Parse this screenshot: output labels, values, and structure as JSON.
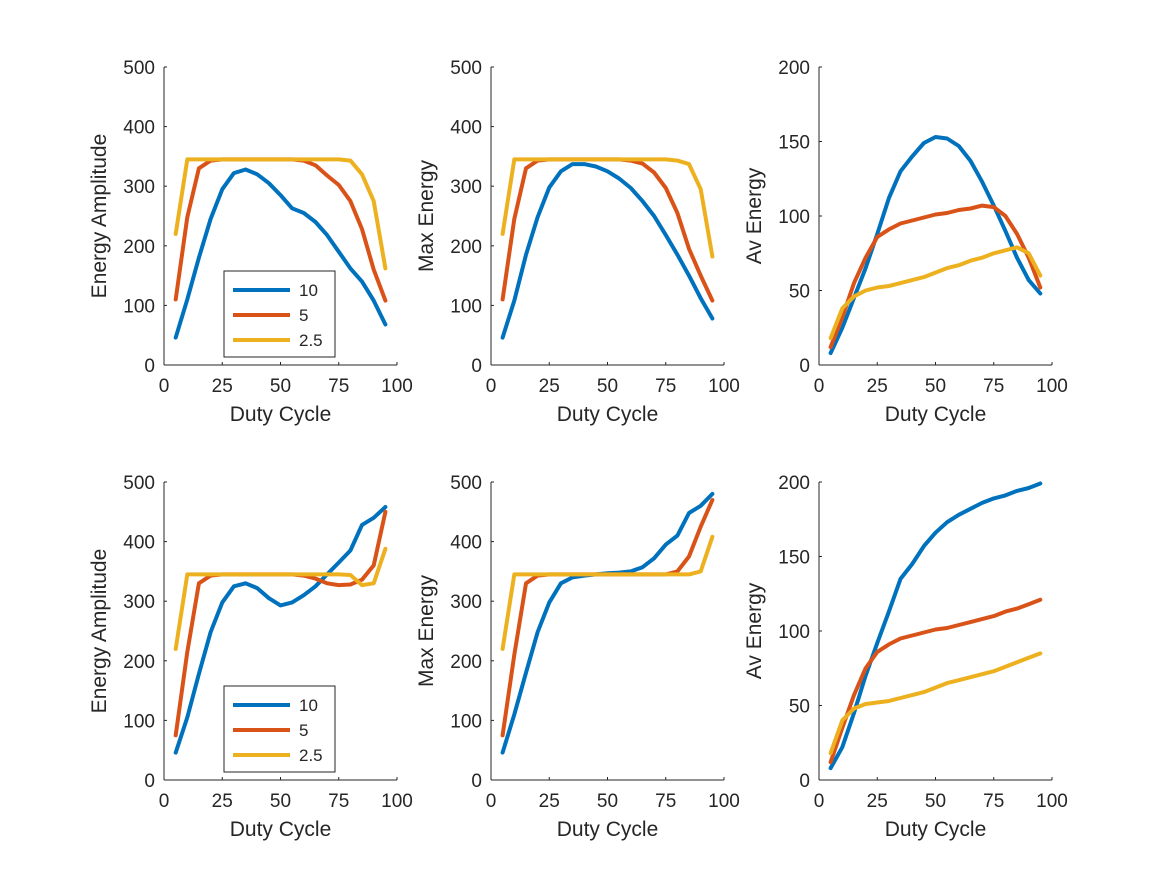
{
  "colors": {
    "10": "#0072BD",
    "5": "#D95319",
    "2.5": "#EDB120",
    "axis": "#262626"
  },
  "chart_data": [
    {
      "type": "line",
      "xlabel": "Duty Cycle",
      "ylabel": "Energy Amplitude",
      "xlim": [
        0,
        100
      ],
      "ylim": [
        0,
        500
      ],
      "xticks": [
        0,
        25,
        50,
        75,
        100
      ],
      "yticks": [
        0,
        100,
        200,
        300,
        400,
        500
      ],
      "legend": {
        "show": true,
        "placement": "bottom-center"
      },
      "x": [
        5,
        10,
        15,
        20,
        25,
        30,
        35,
        40,
        45,
        50,
        55,
        60,
        65,
        70,
        75,
        80,
        85,
        90,
        95
      ],
      "series": [
        {
          "name": "10",
          "values": [
            46,
            110,
            180,
            245,
            295,
            322,
            328,
            320,
            305,
            285,
            263,
            255,
            240,
            218,
            190,
            162,
            140,
            108,
            68
          ]
        },
        {
          "name": "5",
          "values": [
            110,
            248,
            330,
            343,
            345,
            345,
            345,
            345,
            345,
            345,
            345,
            343,
            335,
            318,
            302,
            275,
            228,
            160,
            108
          ]
        },
        {
          "name": "2.5",
          "values": [
            220,
            345,
            345,
            345,
            345,
            345,
            345,
            345,
            345,
            345,
            345,
            345,
            345,
            345,
            345,
            343,
            320,
            275,
            162
          ]
        }
      ]
    },
    {
      "type": "line",
      "xlabel": "Duty Cycle",
      "ylabel": "Max Energy",
      "xlim": [
        0,
        100
      ],
      "ylim": [
        0,
        500
      ],
      "xticks": [
        0,
        25,
        50,
        75,
        100
      ],
      "yticks": [
        0,
        100,
        200,
        300,
        400,
        500
      ],
      "legend": {
        "show": false
      },
      "x": [
        5,
        10,
        15,
        20,
        25,
        30,
        35,
        40,
        45,
        50,
        55,
        60,
        65,
        70,
        75,
        80,
        85,
        90,
        95
      ],
      "series": [
        {
          "name": "10",
          "values": [
            46,
            108,
            185,
            248,
            298,
            325,
            337,
            337,
            333,
            325,
            313,
            297,
            275,
            250,
            218,
            185,
            150,
            112,
            78
          ]
        },
        {
          "name": "5",
          "values": [
            110,
            245,
            330,
            343,
            345,
            345,
            345,
            345,
            345,
            345,
            345,
            343,
            338,
            323,
            297,
            255,
            195,
            150,
            108
          ]
        },
        {
          "name": "2.5",
          "values": [
            220,
            345,
            345,
            345,
            345,
            345,
            345,
            345,
            345,
            345,
            345,
            345,
            345,
            345,
            345,
            343,
            337,
            295,
            182
          ]
        }
      ]
    },
    {
      "type": "line",
      "xlabel": "Duty Cycle",
      "ylabel": "Av Energy",
      "xlim": [
        0,
        100
      ],
      "ylim": [
        0,
        200
      ],
      "xticks": [
        0,
        25,
        50,
        75,
        100
      ],
      "yticks": [
        0,
        50,
        100,
        150,
        200
      ],
      "legend": {
        "show": false
      },
      "x": [
        5,
        10,
        15,
        20,
        25,
        30,
        35,
        40,
        45,
        50,
        55,
        60,
        65,
        70,
        75,
        80,
        85,
        90,
        95
      ],
      "series": [
        {
          "name": "10",
          "values": [
            8,
            25,
            45,
            65,
            88,
            112,
            130,
            140,
            149,
            153,
            152,
            147,
            137,
            123,
            107,
            90,
            72,
            57,
            48
          ]
        },
        {
          "name": "5",
          "values": [
            12,
            32,
            55,
            72,
            86,
            91,
            95,
            97,
            99,
            101,
            102,
            104,
            105,
            107,
            106,
            100,
            88,
            72,
            52
          ]
        },
        {
          "name": "2.5",
          "values": [
            18,
            38,
            46,
            50,
            52,
            53,
            55,
            57,
            59,
            62,
            65,
            67,
            70,
            72,
            75,
            77,
            79,
            75,
            60
          ]
        }
      ]
    },
    {
      "type": "line",
      "xlabel": "Duty Cycle",
      "ylabel": "Energy Amplitude",
      "xlim": [
        0,
        100
      ],
      "ylim": [
        0,
        500
      ],
      "xticks": [
        0,
        25,
        50,
        75,
        100
      ],
      "yticks": [
        0,
        100,
        200,
        300,
        400,
        500
      ],
      "legend": {
        "show": true,
        "placement": "bottom-center"
      },
      "x": [
        5,
        10,
        15,
        20,
        25,
        30,
        35,
        40,
        45,
        50,
        55,
        60,
        65,
        70,
        75,
        80,
        85,
        90,
        95
      ],
      "series": [
        {
          "name": "10",
          "values": [
            46,
            105,
            178,
            248,
            298,
            325,
            330,
            322,
            305,
            293,
            298,
            310,
            325,
            345,
            365,
            385,
            428,
            440,
            458
          ]
        },
        {
          "name": "5",
          "values": [
            75,
            215,
            330,
            343,
            345,
            345,
            345,
            345,
            345,
            345,
            345,
            343,
            338,
            330,
            327,
            328,
            336,
            360,
            450
          ]
        },
        {
          "name": "2.5",
          "values": [
            220,
            345,
            345,
            345,
            345,
            345,
            345,
            345,
            345,
            345,
            345,
            345,
            345,
            345,
            345,
            344,
            327,
            330,
            388
          ]
        }
      ]
    },
    {
      "type": "line",
      "xlabel": "Duty Cycle",
      "ylabel": "Max Energy",
      "xlim": [
        0,
        100
      ],
      "ylim": [
        0,
        500
      ],
      "xticks": [
        0,
        25,
        50,
        75,
        100
      ],
      "yticks": [
        0,
        100,
        200,
        300,
        400,
        500
      ],
      "legend": {
        "show": false
      },
      "x": [
        5,
        10,
        15,
        20,
        25,
        30,
        35,
        40,
        45,
        50,
        55,
        60,
        65,
        70,
        75,
        80,
        85,
        90,
        95
      ],
      "series": [
        {
          "name": "10",
          "values": [
            46,
            110,
            180,
            248,
            298,
            330,
            340,
            343,
            345,
            347,
            348,
            350,
            357,
            372,
            395,
            410,
            448,
            460,
            480
          ]
        },
        {
          "name": "5",
          "values": [
            75,
            210,
            330,
            343,
            345,
            345,
            345,
            345,
            345,
            345,
            345,
            345,
            345,
            345,
            345,
            350,
            375,
            425,
            470
          ]
        },
        {
          "name": "2.5",
          "values": [
            220,
            345,
            345,
            345,
            345,
            345,
            345,
            345,
            345,
            345,
            345,
            345,
            345,
            345,
            345,
            345,
            345,
            350,
            408
          ]
        }
      ]
    },
    {
      "type": "line",
      "xlabel": "Duty Cycle",
      "ylabel": "Av Energy",
      "xlim": [
        0,
        100
      ],
      "ylim": [
        0,
        200
      ],
      "xticks": [
        0,
        25,
        50,
        75,
        100
      ],
      "yticks": [
        0,
        50,
        100,
        150,
        200
      ],
      "legend": {
        "show": false
      },
      "x": [
        5,
        10,
        15,
        20,
        25,
        30,
        35,
        40,
        45,
        50,
        55,
        60,
        65,
        70,
        75,
        80,
        85,
        90,
        95
      ],
      "series": [
        {
          "name": "10",
          "values": [
            8,
            22,
            45,
            70,
            92,
            113,
            135,
            145,
            157,
            166,
            173,
            178,
            182,
            186,
            189,
            191,
            194,
            196,
            199
          ]
        },
        {
          "name": "5",
          "values": [
            12,
            35,
            57,
            75,
            86,
            91,
            95,
            97,
            99,
            101,
            102,
            104,
            106,
            108,
            110,
            113,
            115,
            118,
            121
          ]
        },
        {
          "name": "2.5",
          "values": [
            18,
            40,
            48,
            51,
            52,
            53,
            55,
            57,
            59,
            62,
            65,
            67,
            69,
            71,
            73,
            76,
            79,
            82,
            85
          ]
        }
      ]
    }
  ]
}
